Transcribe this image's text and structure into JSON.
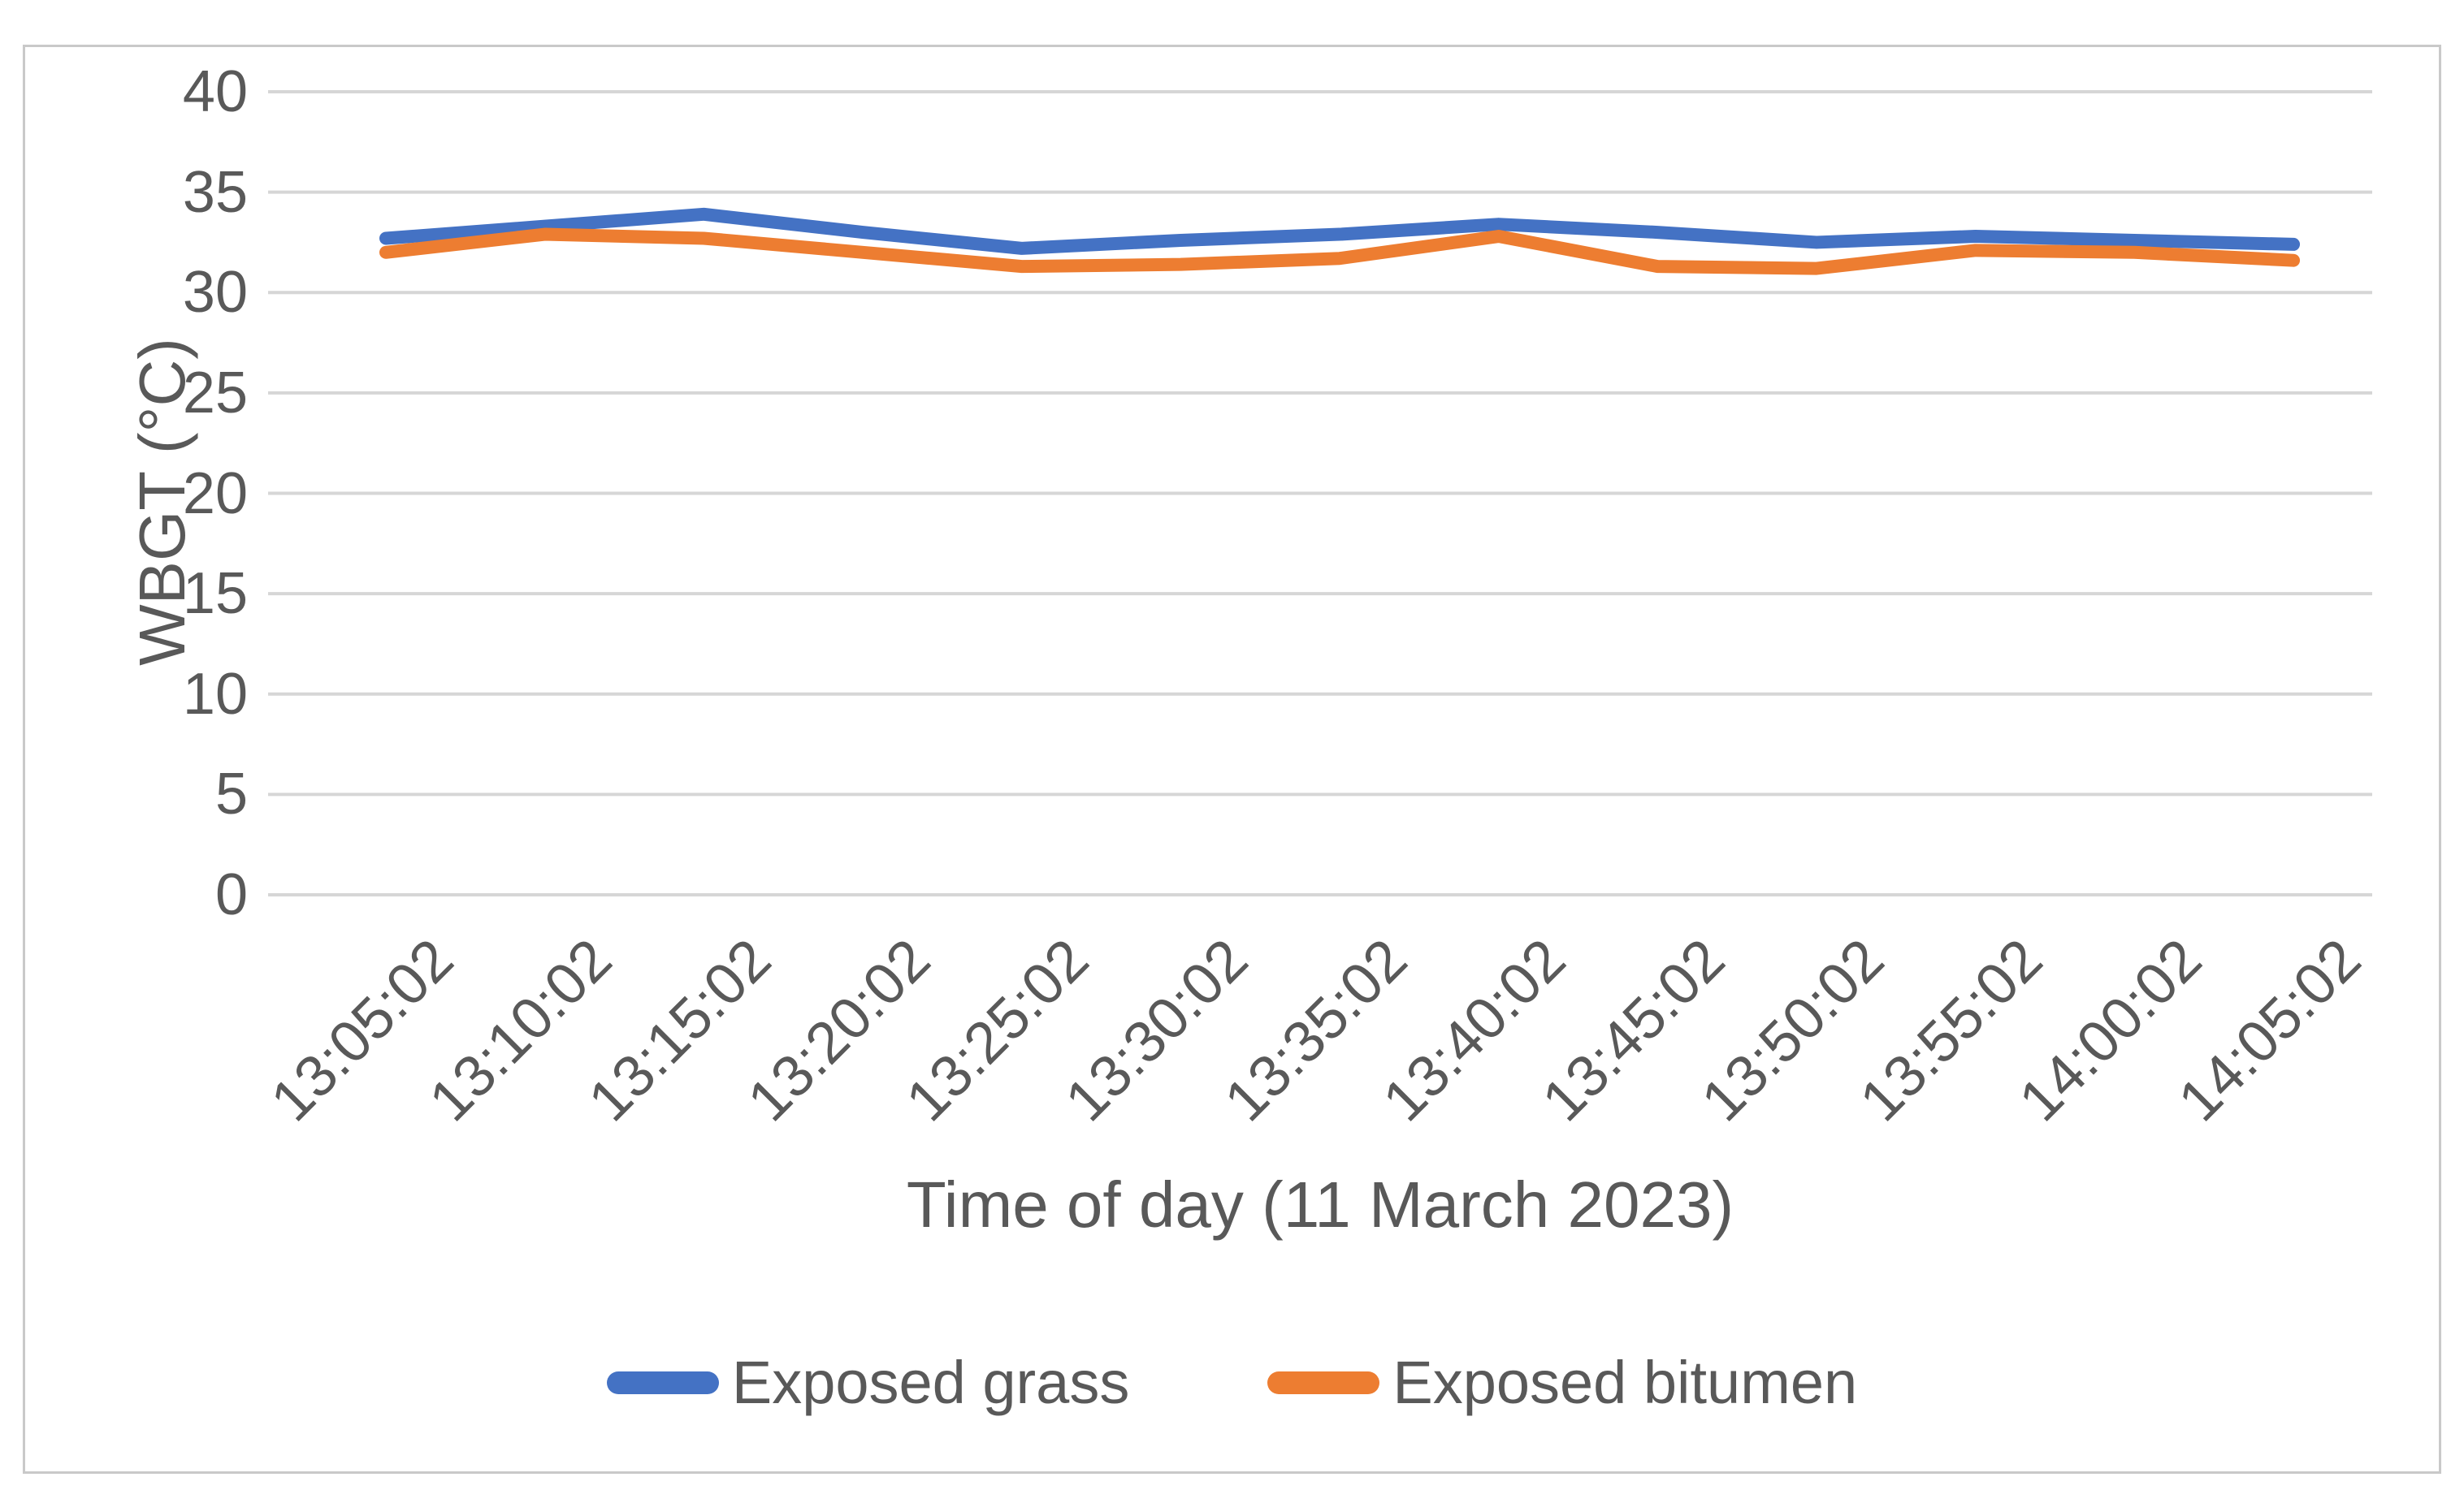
{
  "chart_data": {
    "type": "line",
    "title": "",
    "xlabel": "Time of day (11 March 2023)",
    "ylabel": "WBGT (°C)",
    "ylim": [
      0,
      40
    ],
    "ytick_step": 5,
    "grid": "horizontal",
    "gridline_color": "#d6d6d6",
    "axis_text_color": "#595959",
    "legend_position": "bottom",
    "categories": [
      "13:05:02",
      "13:10:02",
      "13:15:02",
      "13:20:02",
      "13:25:02",
      "13:30:02",
      "13:35:02",
      "13:40:02",
      "13:45:02",
      "13:50:02",
      "13:55:02",
      "14:00:02",
      "14:05:02"
    ],
    "series": [
      {
        "name": "Exposed grass",
        "color": "#4472C4",
        "values": [
          32.7,
          33.3,
          33.9,
          33.0,
          32.2,
          32.6,
          32.9,
          33.4,
          33.0,
          32.5,
          32.8,
          32.6,
          32.4
        ]
      },
      {
        "name": "Exposed bitumen",
        "color": "#ED7D31",
        "values": [
          32.0,
          32.9,
          32.7,
          32.0,
          31.3,
          31.4,
          31.7,
          32.8,
          31.3,
          31.2,
          32.1,
          32.0,
          31.6
        ]
      }
    ]
  }
}
